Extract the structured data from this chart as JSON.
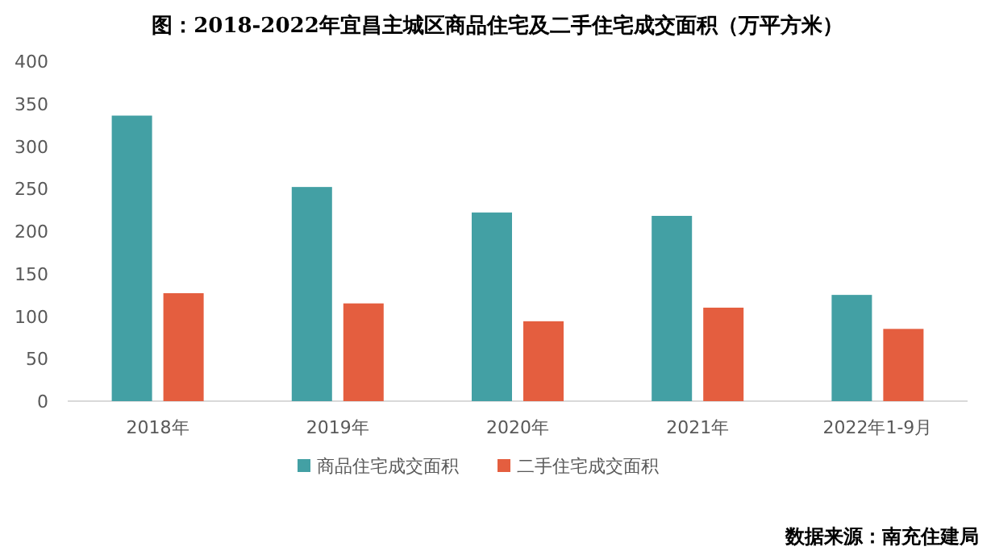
{
  "chart_data": {
    "type": "bar",
    "title": "图：2018-2022年宜昌主城区商品住宅及二手住宅成交面积（万平方米）",
    "categories": [
      "2018年",
      "2019年",
      "2020年",
      "2021年",
      "2022年1-9月"
    ],
    "series": [
      {
        "name": "商品住宅成交面积",
        "color": "#43a0a4",
        "values": [
          336,
          252,
          222,
          218,
          125
        ]
      },
      {
        "name": "二手住宅成交面积",
        "color": "#e45e3f",
        "values": [
          127,
          115,
          94,
          110,
          85
        ]
      }
    ],
    "ylim": [
      0,
      400
    ],
    "yticks": [
      0,
      50,
      100,
      150,
      200,
      250,
      300,
      350,
      400
    ],
    "grid": false,
    "legend": "bottom",
    "annotations": [
      "数据来源：南充住建局"
    ]
  }
}
